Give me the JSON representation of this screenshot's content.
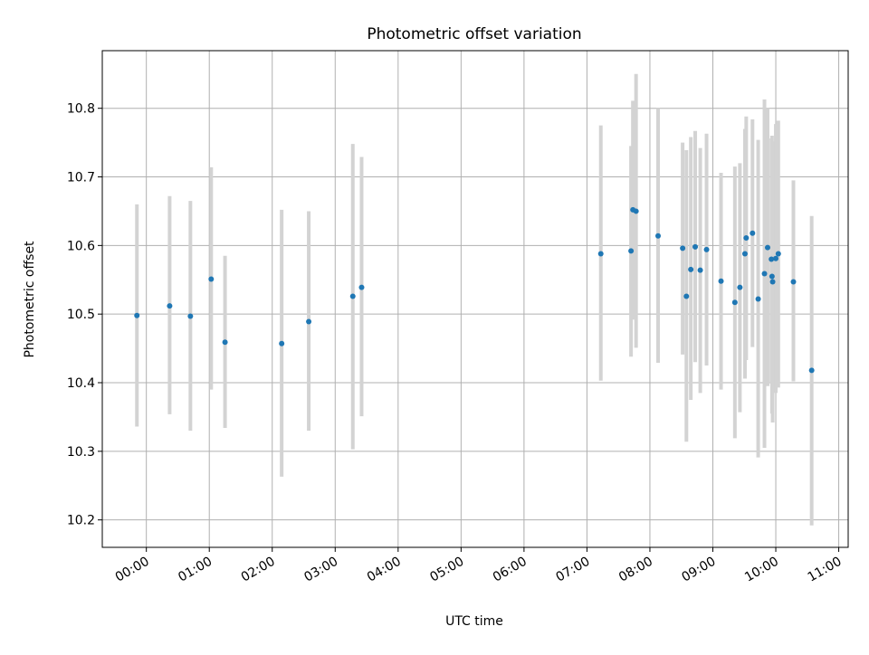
{
  "chart_data": {
    "type": "scatter",
    "title": "Photometric offset variation",
    "xlabel": "UTC time",
    "ylabel": "Photometric offset",
    "x_unit": "hours (UTC)",
    "xlim": [
      -0.7,
      11.15
    ],
    "ylim": [
      10.16,
      10.884
    ],
    "x_ticks": [
      0,
      1,
      2,
      3,
      4,
      5,
      6,
      7,
      8,
      9,
      10,
      11
    ],
    "x_tick_labels": [
      "00:00",
      "01:00",
      "02:00",
      "03:00",
      "04:00",
      "05:00",
      "06:00",
      "07:00",
      "08:00",
      "09:00",
      "10:00",
      "11:00"
    ],
    "y_ticks": [
      10.2,
      10.3,
      10.4,
      10.5,
      10.6,
      10.7,
      10.8
    ],
    "y_tick_labels": [
      "10.2",
      "10.3",
      "10.4",
      "10.5",
      "10.6",
      "10.7",
      "10.8"
    ],
    "grid": true,
    "marker_color": "#1f77b4",
    "errorbar_color": "#d3d3d3",
    "series": [
      {
        "points": [
          {
            "x": -0.15,
            "y": 10.498,
            "lo": 10.336,
            "hi": 10.66
          },
          {
            "x": 0.37,
            "y": 10.512,
            "lo": 10.354,
            "hi": 10.672
          },
          {
            "x": 0.7,
            "y": 10.497,
            "lo": 10.33,
            "hi": 10.665
          },
          {
            "x": 1.03,
            "y": 10.551,
            "lo": 10.39,
            "hi": 10.714
          },
          {
            "x": 1.25,
            "y": 10.459,
            "lo": 10.334,
            "hi": 10.585
          },
          {
            "x": 2.15,
            "y": 10.457,
            "lo": 10.263,
            "hi": 10.652
          },
          {
            "x": 2.58,
            "y": 10.489,
            "lo": 10.33,
            "hi": 10.65
          },
          {
            "x": 3.28,
            "y": 10.526,
            "lo": 10.303,
            "hi": 10.748
          },
          {
            "x": 3.42,
            "y": 10.539,
            "lo": 10.351,
            "hi": 10.729
          },
          {
            "x": 7.22,
            "y": 10.588,
            "lo": 10.403,
            "hi": 10.775
          },
          {
            "x": 7.7,
            "y": 10.592,
            "lo": 10.438,
            "hi": 10.745
          },
          {
            "x": 7.73,
            "y": 10.652,
            "lo": 10.492,
            "hi": 10.811
          },
          {
            "x": 7.78,
            "y": 10.65,
            "lo": 10.451,
            "hi": 10.85
          },
          {
            "x": 8.13,
            "y": 10.614,
            "lo": 10.429,
            "hi": 10.8
          },
          {
            "x": 8.52,
            "y": 10.596,
            "lo": 10.441,
            "hi": 10.75
          },
          {
            "x": 8.58,
            "y": 10.526,
            "lo": 10.314,
            "hi": 10.739
          },
          {
            "x": 8.65,
            "y": 10.565,
            "lo": 10.375,
            "hi": 10.758
          },
          {
            "x": 8.72,
            "y": 10.598,
            "lo": 10.43,
            "hi": 10.767
          },
          {
            "x": 8.8,
            "y": 10.564,
            "lo": 10.385,
            "hi": 10.742
          },
          {
            "x": 8.9,
            "y": 10.594,
            "lo": 10.425,
            "hi": 10.763
          },
          {
            "x": 9.13,
            "y": 10.548,
            "lo": 10.39,
            "hi": 10.706
          },
          {
            "x": 9.35,
            "y": 10.517,
            "lo": 10.319,
            "hi": 10.715
          },
          {
            "x": 9.43,
            "y": 10.539,
            "lo": 10.357,
            "hi": 10.72
          },
          {
            "x": 9.51,
            "y": 10.588,
            "lo": 10.406,
            "hi": 10.77
          },
          {
            "x": 9.53,
            "y": 10.611,
            "lo": 10.433,
            "hi": 10.788
          },
          {
            "x": 9.63,
            "y": 10.618,
            "lo": 10.452,
            "hi": 10.784
          },
          {
            "x": 9.72,
            "y": 10.522,
            "lo": 10.291,
            "hi": 10.754
          },
          {
            "x": 9.82,
            "y": 10.559,
            "lo": 10.305,
            "hi": 10.813
          },
          {
            "x": 9.87,
            "y": 10.597,
            "lo": 10.395,
            "hi": 10.8
          },
          {
            "x": 9.93,
            "y": 10.58,
            "lo": 10.4,
            "hi": 10.756
          },
          {
            "x": 9.94,
            "y": 10.555,
            "lo": 10.355,
            "hi": 10.76
          },
          {
            "x": 9.95,
            "y": 10.547,
            "lo": 10.342,
            "hi": 10.752
          },
          {
            "x": 10.0,
            "y": 10.581,
            "lo": 10.385,
            "hi": 10.777
          },
          {
            "x": 10.04,
            "y": 10.588,
            "lo": 10.393,
            "hi": 10.782
          },
          {
            "x": 10.28,
            "y": 10.547,
            "lo": 10.402,
            "hi": 10.695
          },
          {
            "x": 10.57,
            "y": 10.418,
            "lo": 10.192,
            "hi": 10.643
          }
        ]
      }
    ]
  }
}
